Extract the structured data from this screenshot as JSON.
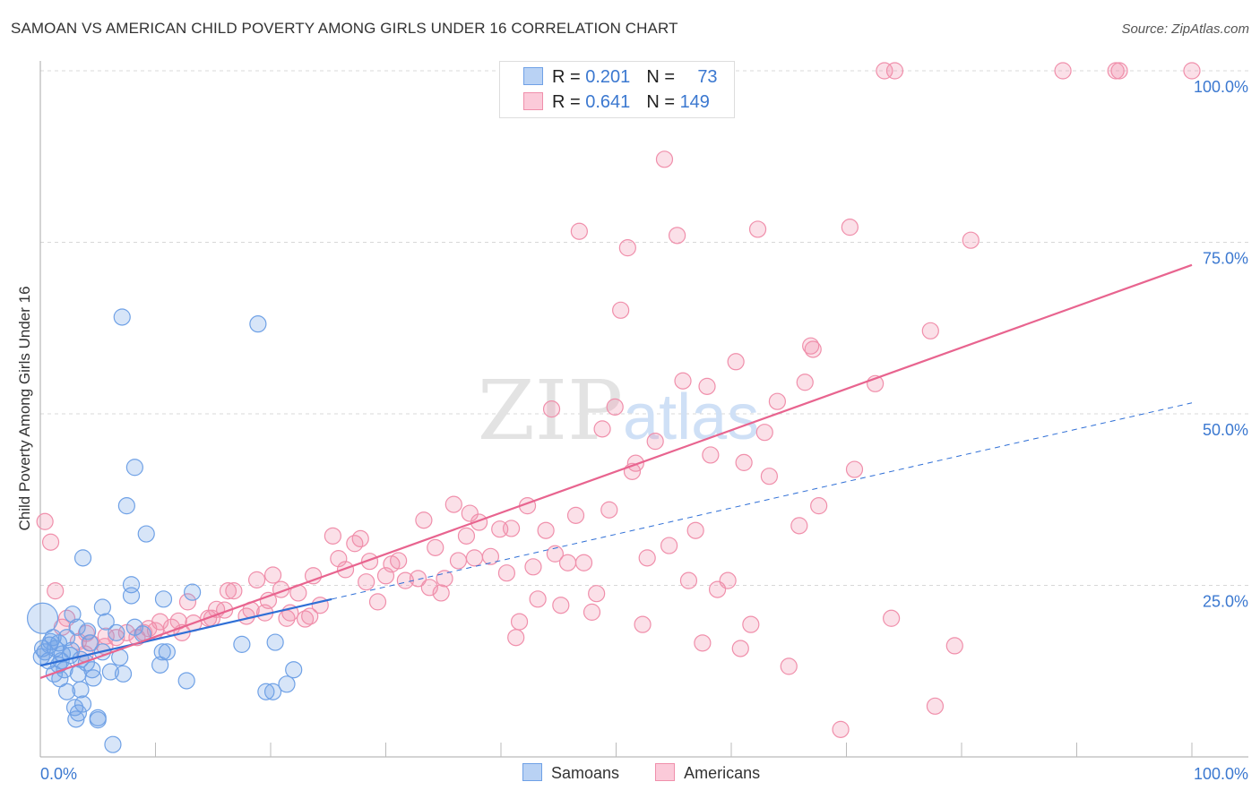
{
  "chart_data": {
    "type": "scatter",
    "title": "SAMOAN VS AMERICAN CHILD POVERTY AMONG GIRLS UNDER 16 CORRELATION CHART",
    "source": "Source: ZipAtlas.com",
    "ylabel": "Child Poverty Among Girls Under 16",
    "xlim": [
      0,
      100
    ],
    "ylim": [
      0,
      100
    ],
    "x_tick_labels": [
      "0.0%",
      "100.0%"
    ],
    "y_tick_labels": [
      "100.0%",
      "75.0%",
      "50.0%",
      "25.0%"
    ],
    "y_ticks": [
      100,
      75,
      50,
      25
    ],
    "watermark": "ZIPatlas",
    "legend": [
      {
        "r_label": "R = ",
        "r": "0.201",
        "n_label": "N = ",
        "n": "73"
      },
      {
        "r_label": "R = ",
        "r": "0.641",
        "n_label": "N = ",
        "n": "149"
      }
    ],
    "series": [
      {
        "name": "Samoans",
        "color": "#6fa1e6",
        "line_color": "#2f6fd6",
        "trend": {
          "intercept": 13.3,
          "slope": 0.383,
          "solid_until": 25.3
        },
        "points": [
          [
            7.1,
            64.1
          ],
          [
            18.9,
            63.1
          ],
          [
            8.2,
            42.2
          ],
          [
            7.5,
            36.6
          ],
          [
            9.2,
            32.5
          ],
          [
            3.7,
            29.0
          ],
          [
            7.9,
            25.1
          ],
          [
            7.9,
            23.5
          ],
          [
            13.2,
            24.0
          ],
          [
            10.7,
            23.0
          ],
          [
            2.8,
            20.8
          ],
          [
            5.4,
            21.8
          ],
          [
            5.7,
            19.7
          ],
          [
            8.2,
            18.9
          ],
          [
            0.2,
            20.2
          ],
          [
            1.1,
            17.4
          ],
          [
            3.2,
            18.9
          ],
          [
            4.1,
            18.3
          ],
          [
            6.6,
            18.1
          ],
          [
            8.9,
            17.9
          ],
          [
            17.5,
            16.4
          ],
          [
            20.4,
            16.7
          ],
          [
            10.6,
            15.3
          ],
          [
            11.0,
            15.3
          ],
          [
            10.4,
            13.4
          ],
          [
            6.9,
            14.5
          ],
          [
            5.4,
            15.3
          ],
          [
            0.8,
            16.3
          ],
          [
            0.4,
            15.3
          ],
          [
            1.3,
            15.8
          ],
          [
            1.9,
            15.0
          ],
          [
            2.6,
            14.8
          ],
          [
            3.5,
            14.2
          ],
          [
            0.7,
            14.0
          ],
          [
            1.6,
            13.4
          ],
          [
            2.1,
            12.7
          ],
          [
            4.0,
            13.7
          ],
          [
            4.5,
            12.7
          ],
          [
            1.2,
            12.1
          ],
          [
            3.3,
            12.1
          ],
          [
            6.1,
            12.4
          ],
          [
            7.2,
            12.1
          ],
          [
            4.6,
            11.5
          ],
          [
            1.7,
            11.4
          ],
          [
            12.7,
            11.1
          ],
          [
            22.0,
            12.7
          ],
          [
            21.4,
            10.6
          ],
          [
            19.6,
            9.5
          ],
          [
            20.2,
            9.5
          ],
          [
            2.3,
            9.5
          ],
          [
            3.5,
            9.8
          ],
          [
            3.7,
            7.7
          ],
          [
            3.0,
            7.2
          ],
          [
            3.3,
            6.4
          ],
          [
            3.1,
            5.5
          ],
          [
            5.0,
            5.7
          ],
          [
            5.0,
            5.4
          ],
          [
            6.3,
            1.8
          ],
          [
            0.9,
            16.8
          ],
          [
            0.2,
            15.8
          ],
          [
            0.1,
            14.6
          ],
          [
            1.6,
            16.6
          ],
          [
            2.7,
            15.5
          ],
          [
            2.3,
            17.4
          ],
          [
            4.3,
            16.6
          ],
          [
            1.8,
            14.0
          ]
        ]
      },
      {
        "name": "Americans",
        "color": "#f08fab",
        "line_color": "#e8648f",
        "trend": {
          "intercept": 11.5,
          "slope": 0.602,
          "solid_until": 100
        },
        "points": [
          [
            54.1,
            100
          ],
          [
            59.1,
            100
          ],
          [
            73.3,
            100
          ],
          [
            74.2,
            100
          ],
          [
            88.8,
            100
          ],
          [
            93.4,
            100
          ],
          [
            93.7,
            100
          ],
          [
            100,
            100
          ],
          [
            54.2,
            87.1
          ],
          [
            46.8,
            76.6
          ],
          [
            51.0,
            74.2
          ],
          [
            55.3,
            76.0
          ],
          [
            62.3,
            76.9
          ],
          [
            70.3,
            77.2
          ],
          [
            80.8,
            75.3
          ],
          [
            50.4,
            65.1
          ],
          [
            77.3,
            62.1
          ],
          [
            66.9,
            59.9
          ],
          [
            67.1,
            59.4
          ],
          [
            60.4,
            57.6
          ],
          [
            55.8,
            54.8
          ],
          [
            57.9,
            54.0
          ],
          [
            66.4,
            54.6
          ],
          [
            72.5,
            54.4
          ],
          [
            64.0,
            51.8
          ],
          [
            49.9,
            51.0
          ],
          [
            44.4,
            50.7
          ],
          [
            48.8,
            47.8
          ],
          [
            62.9,
            47.3
          ],
          [
            53.4,
            46.0
          ],
          [
            58.2,
            44.0
          ],
          [
            51.7,
            42.8
          ],
          [
            51.4,
            41.6
          ],
          [
            61.1,
            42.9
          ],
          [
            63.3,
            40.9
          ],
          [
            70.7,
            41.9
          ],
          [
            35.9,
            36.8
          ],
          [
            42.3,
            36.6
          ],
          [
            49.4,
            36.0
          ],
          [
            67.6,
            36.6
          ],
          [
            33.3,
            34.5
          ],
          [
            37.3,
            35.5
          ],
          [
            46.5,
            35.2
          ],
          [
            38.1,
            34.2
          ],
          [
            39.9,
            33.2
          ],
          [
            40.9,
            33.3
          ],
          [
            56.9,
            33.0
          ],
          [
            65.9,
            33.7
          ],
          [
            25.4,
            32.2
          ],
          [
            27.8,
            31.8
          ],
          [
            27.3,
            31.1
          ],
          [
            34.3,
            30.5
          ],
          [
            37.0,
            32.2
          ],
          [
            43.9,
            33.0
          ],
          [
            54.6,
            30.8
          ],
          [
            25.9,
            28.9
          ],
          [
            31.1,
            28.6
          ],
          [
            30.5,
            28.1
          ],
          [
            28.6,
            28.5
          ],
          [
            36.3,
            28.6
          ],
          [
            37.7,
            29.0
          ],
          [
            39.1,
            29.2
          ],
          [
            44.7,
            29.6
          ],
          [
            45.8,
            28.3
          ],
          [
            47.2,
            28.3
          ],
          [
            52.7,
            29.0
          ],
          [
            20.2,
            26.5
          ],
          [
            18.8,
            25.8
          ],
          [
            23.7,
            26.4
          ],
          [
            26.5,
            27.3
          ],
          [
            30.0,
            26.4
          ],
          [
            31.7,
            25.7
          ],
          [
            32.8,
            26.0
          ],
          [
            35.1,
            26.0
          ],
          [
            28.3,
            25.5
          ],
          [
            40.5,
            26.8
          ],
          [
            42.8,
            27.7
          ],
          [
            56.3,
            25.7
          ],
          [
            59.7,
            25.7
          ],
          [
            20.9,
            24.4
          ],
          [
            16.3,
            24.2
          ],
          [
            16.8,
            24.2
          ],
          [
            22.4,
            23.9
          ],
          [
            33.8,
            24.7
          ],
          [
            34.8,
            23.9
          ],
          [
            48.3,
            23.8
          ],
          [
            58.8,
            24.4
          ],
          [
            12.8,
            22.6
          ],
          [
            19.8,
            22.8
          ],
          [
            24.3,
            22.1
          ],
          [
            29.3,
            22.6
          ],
          [
            43.2,
            23.0
          ],
          [
            45.2,
            22.1
          ],
          [
            15.3,
            21.5
          ],
          [
            16.0,
            21.4
          ],
          [
            18.3,
            21.4
          ],
          [
            19.5,
            21.0
          ],
          [
            21.7,
            21.0
          ],
          [
            47.9,
            21.1
          ],
          [
            17.9,
            20.5
          ],
          [
            21.4,
            20.2
          ],
          [
            23.0,
            20.1
          ],
          [
            23.4,
            20.5
          ],
          [
            10.4,
            19.7
          ],
          [
            12.0,
            19.8
          ],
          [
            14.6,
            20.2
          ],
          [
            14.9,
            20.2
          ],
          [
            41.6,
            19.7
          ],
          [
            73.9,
            20.2
          ],
          [
            11.4,
            18.9
          ],
          [
            13.3,
            19.5
          ],
          [
            10.0,
            18.4
          ],
          [
            12.3,
            18.1
          ],
          [
            7.5,
            18.1
          ],
          [
            52.3,
            19.3
          ],
          [
            61.7,
            19.3
          ],
          [
            8.4,
            17.4
          ],
          [
            6.6,
            17.4
          ],
          [
            5.7,
            17.6
          ],
          [
            41.3,
            17.4
          ],
          [
            4.4,
            16.6
          ],
          [
            3.3,
            16.8
          ],
          [
            5.6,
            16.1
          ],
          [
            57.5,
            16.6
          ],
          [
            79.4,
            16.2
          ],
          [
            60.8,
            15.8
          ],
          [
            1.9,
            18.9
          ],
          [
            2.3,
            20.2
          ],
          [
            1.3,
            24.2
          ],
          [
            0.4,
            34.3
          ],
          [
            0.9,
            31.3
          ],
          [
            4.0,
            18.0
          ],
          [
            65.0,
            13.2
          ],
          [
            77.7,
            7.4
          ],
          [
            69.5,
            4.0
          ],
          [
            9.0,
            18.1
          ],
          [
            3.9,
            15.0
          ],
          [
            9.4,
            18.7
          ]
        ]
      }
    ]
  }
}
